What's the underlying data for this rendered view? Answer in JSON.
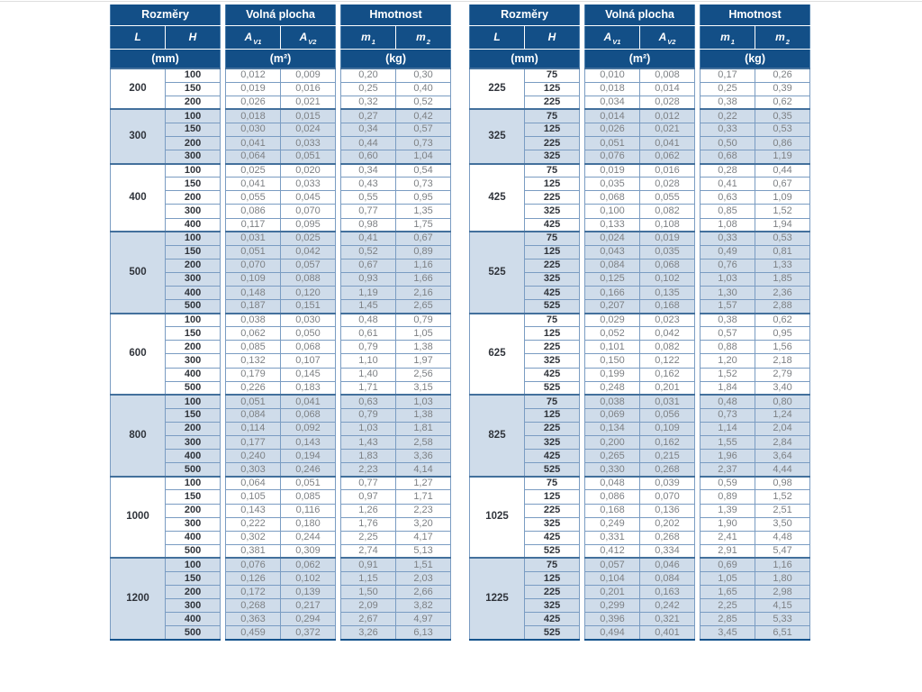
{
  "colors": {
    "header_bg": "#134f87",
    "stripe_bg": "#cfdcea",
    "row_border": "#7a9cc2",
    "group_border": "#43709c",
    "value_text": "#7d8084",
    "bold_text": "#30343b"
  },
  "tables": [
    {
      "header": {
        "group_labels": [
          "Rozměry",
          "Volná plocha",
          "Hmotnost"
        ],
        "columns": [
          {
            "base": "L"
          },
          {
            "base": "H"
          },
          {
            "base": "A",
            "sub": "V1"
          },
          {
            "base": "A",
            "sub": "V2"
          },
          {
            "base": "m",
            "sub": "1"
          },
          {
            "base": "m",
            "sub": "2"
          }
        ],
        "units": [
          "(mm)",
          "(m²)",
          "(kg)"
        ]
      },
      "groups": [
        {
          "L": "200",
          "rows": [
            [
              "100",
              "0,012",
              "0,009",
              "0,20",
              "0,30"
            ],
            [
              "150",
              "0,019",
              "0,016",
              "0,25",
              "0,40"
            ],
            [
              "200",
              "0,026",
              "0,021",
              "0,32",
              "0,52"
            ]
          ]
        },
        {
          "L": "300",
          "rows": [
            [
              "100",
              "0,018",
              "0,015",
              "0,27",
              "0,42"
            ],
            [
              "150",
              "0,030",
              "0,024",
              "0,34",
              "0,57"
            ],
            [
              "200",
              "0,041",
              "0,033",
              "0,44",
              "0,73"
            ],
            [
              "300",
              "0,064",
              "0,051",
              "0,60",
              "1,04"
            ]
          ]
        },
        {
          "L": "400",
          "rows": [
            [
              "100",
              "0,025",
              "0,020",
              "0,34",
              "0,54"
            ],
            [
              "150",
              "0,041",
              "0,033",
              "0,43",
              "0,73"
            ],
            [
              "200",
              "0,055",
              "0,045",
              "0,55",
              "0,95"
            ],
            [
              "300",
              "0,086",
              "0,070",
              "0,77",
              "1,35"
            ],
            [
              "400",
              "0,117",
              "0,095",
              "0,98",
              "1,75"
            ]
          ]
        },
        {
          "L": "500",
          "rows": [
            [
              "100",
              "0,031",
              "0,025",
              "0,41",
              "0,67"
            ],
            [
              "150",
              "0,051",
              "0,042",
              "0,52",
              "0,89"
            ],
            [
              "200",
              "0,070",
              "0,057",
              "0,67",
              "1,16"
            ],
            [
              "300",
              "0,109",
              "0,088",
              "0,93",
              "1,66"
            ],
            [
              "400",
              "0,148",
              "0,120",
              "1,19",
              "2,16"
            ],
            [
              "500",
              "0,187",
              "0,151",
              "1,45",
              "2,65"
            ]
          ]
        },
        {
          "L": "600",
          "rows": [
            [
              "100",
              "0,038",
              "0,030",
              "0,48",
              "0,79"
            ],
            [
              "150",
              "0,062",
              "0,050",
              "0,61",
              "1,05"
            ],
            [
              "200",
              "0,085",
              "0,068",
              "0,79",
              "1,38"
            ],
            [
              "300",
              "0,132",
              "0,107",
              "1,10",
              "1,97"
            ],
            [
              "400",
              "0,179",
              "0,145",
              "1,40",
              "2,56"
            ],
            [
              "500",
              "0,226",
              "0,183",
              "1,71",
              "3,15"
            ]
          ]
        },
        {
          "L": "800",
          "rows": [
            [
              "100",
              "0,051",
              "0,041",
              "0,63",
              "1,03"
            ],
            [
              "150",
              "0,084",
              "0,068",
              "0,79",
              "1,38"
            ],
            [
              "200",
              "0,114",
              "0,092",
              "1,03",
              "1,81"
            ],
            [
              "300",
              "0,177",
              "0,143",
              "1,43",
              "2,58"
            ],
            [
              "400",
              "0,240",
              "0,194",
              "1,83",
              "3,36"
            ],
            [
              "500",
              "0,303",
              "0,246",
              "2,23",
              "4,14"
            ]
          ]
        },
        {
          "L": "1000",
          "rows": [
            [
              "100",
              "0,064",
              "0,051",
              "0,77",
              "1,27"
            ],
            [
              "150",
              "0,105",
              "0,085",
              "0,97",
              "1,71"
            ],
            [
              "200",
              "0,143",
              "0,116",
              "1,26",
              "2,23"
            ],
            [
              "300",
              "0,222",
              "0,180",
              "1,76",
              "3,20"
            ],
            [
              "400",
              "0,302",
              "0,244",
              "2,25",
              "4,17"
            ],
            [
              "500",
              "0,381",
              "0,309",
              "2,74",
              "5,13"
            ]
          ]
        },
        {
          "L": "1200",
          "rows": [
            [
              "100",
              "0,076",
              "0,062",
              "0,91",
              "1,51"
            ],
            [
              "150",
              "0,126",
              "0,102",
              "1,15",
              "2,03"
            ],
            [
              "200",
              "0,172",
              "0,139",
              "1,50",
              "2,66"
            ],
            [
              "300",
              "0,268",
              "0,217",
              "2,09",
              "3,82"
            ],
            [
              "400",
              "0,363",
              "0,294",
              "2,67",
              "4,97"
            ],
            [
              "500",
              "0,459",
              "0,372",
              "3,26",
              "6,13"
            ]
          ]
        }
      ]
    },
    {
      "header": {
        "group_labels": [
          "Rozměry",
          "Volná plocha",
          "Hmotnost"
        ],
        "columns": [
          {
            "base": "L"
          },
          {
            "base": "H"
          },
          {
            "base": "A",
            "sub": "V1"
          },
          {
            "base": "A",
            "sub": "V2"
          },
          {
            "base": "m",
            "sub": "1"
          },
          {
            "base": "m",
            "sub": "2"
          }
        ],
        "units": [
          "(mm)",
          "(m²)",
          "(kg)"
        ]
      },
      "groups": [
        {
          "L": "225",
          "rows": [
            [
              "75",
              "0,010",
              "0,008",
              "0,17",
              "0,26"
            ],
            [
              "125",
              "0,018",
              "0,014",
              "0,25",
              "0,39"
            ],
            [
              "225",
              "0,034",
              "0,028",
              "0,38",
              "0,62"
            ]
          ]
        },
        {
          "L": "325",
          "rows": [
            [
              "75",
              "0,014",
              "0,012",
              "0,22",
              "0,35"
            ],
            [
              "125",
              "0,026",
              "0,021",
              "0,33",
              "0,53"
            ],
            [
              "225",
              "0,051",
              "0,041",
              "0,50",
              "0,86"
            ],
            [
              "325",
              "0,076",
              "0,062",
              "0,68",
              "1,19"
            ]
          ]
        },
        {
          "L": "425",
          "rows": [
            [
              "75",
              "0,019",
              "0,016",
              "0,28",
              "0,44"
            ],
            [
              "125",
              "0,035",
              "0,028",
              "0,41",
              "0,67"
            ],
            [
              "225",
              "0,068",
              "0,055",
              "0,63",
              "1,09"
            ],
            [
              "325",
              "0,100",
              "0,082",
              "0,85",
              "1,52"
            ],
            [
              "425",
              "0,133",
              "0,108",
              "1,08",
              "1,94"
            ]
          ]
        },
        {
          "L": "525",
          "rows": [
            [
              "75",
              "0,024",
              "0,019",
              "0,33",
              "0,53"
            ],
            [
              "125",
              "0,043",
              "0,035",
              "0,49",
              "0,81"
            ],
            [
              "225",
              "0,084",
              "0,068",
              "0,76",
              "1,33"
            ],
            [
              "325",
              "0,125",
              "0,102",
              "1,03",
              "1,85"
            ],
            [
              "425",
              "0,166",
              "0,135",
              "1,30",
              "2,36"
            ],
            [
              "525",
              "0,207",
              "0,168",
              "1,57",
              "2,88"
            ]
          ]
        },
        {
          "L": "625",
          "rows": [
            [
              "75",
              "0,029",
              "0,023",
              "0,38",
              "0,62"
            ],
            [
              "125",
              "0,052",
              "0,042",
              "0,57",
              "0,95"
            ],
            [
              "225",
              "0,101",
              "0,082",
              "0,88",
              "1,56"
            ],
            [
              "325",
              "0,150",
              "0,122",
              "1,20",
              "2,18"
            ],
            [
              "425",
              "0,199",
              "0,162",
              "1,52",
              "2,79"
            ],
            [
              "525",
              "0,248",
              "0,201",
              "1,84",
              "3,40"
            ]
          ]
        },
        {
          "L": "825",
          "rows": [
            [
              "75",
              "0,038",
              "0,031",
              "0,48",
              "0,80"
            ],
            [
              "125",
              "0,069",
              "0,056",
              "0,73",
              "1,24"
            ],
            [
              "225",
              "0,134",
              "0,109",
              "1,14",
              "2,04"
            ],
            [
              "325",
              "0,200",
              "0,162",
              "1,55",
              "2,84"
            ],
            [
              "425",
              "0,265",
              "0,215",
              "1,96",
              "3,64"
            ],
            [
              "525",
              "0,330",
              "0,268",
              "2,37",
              "4,44"
            ]
          ]
        },
        {
          "L": "1025",
          "rows": [
            [
              "75",
              "0,048",
              "0,039",
              "0,59",
              "0,98"
            ],
            [
              "125",
              "0,086",
              "0,070",
              "0,89",
              "1,52"
            ],
            [
              "225",
              "0,168",
              "0,136",
              "1,39",
              "2,51"
            ],
            [
              "325",
              "0,249",
              "0,202",
              "1,90",
              "3,50"
            ],
            [
              "425",
              "0,331",
              "0,268",
              "2,41",
              "4,48"
            ],
            [
              "525",
              "0,412",
              "0,334",
              "2,91",
              "5,47"
            ]
          ]
        },
        {
          "L": "1225",
          "rows": [
            [
              "75",
              "0,057",
              "0,046",
              "0,69",
              "1,16"
            ],
            [
              "125",
              "0,104",
              "0,084",
              "1,05",
              "1,80"
            ],
            [
              "225",
              "0,201",
              "0,163",
              "1,65",
              "2,98"
            ],
            [
              "325",
              "0,299",
              "0,242",
              "2,25",
              "4,15"
            ],
            [
              "425",
              "0,396",
              "0,321",
              "2,85",
              "5,33"
            ],
            [
              "525",
              "0,494",
              "0,401",
              "3,45",
              "6,51"
            ]
          ]
        }
      ]
    }
  ]
}
